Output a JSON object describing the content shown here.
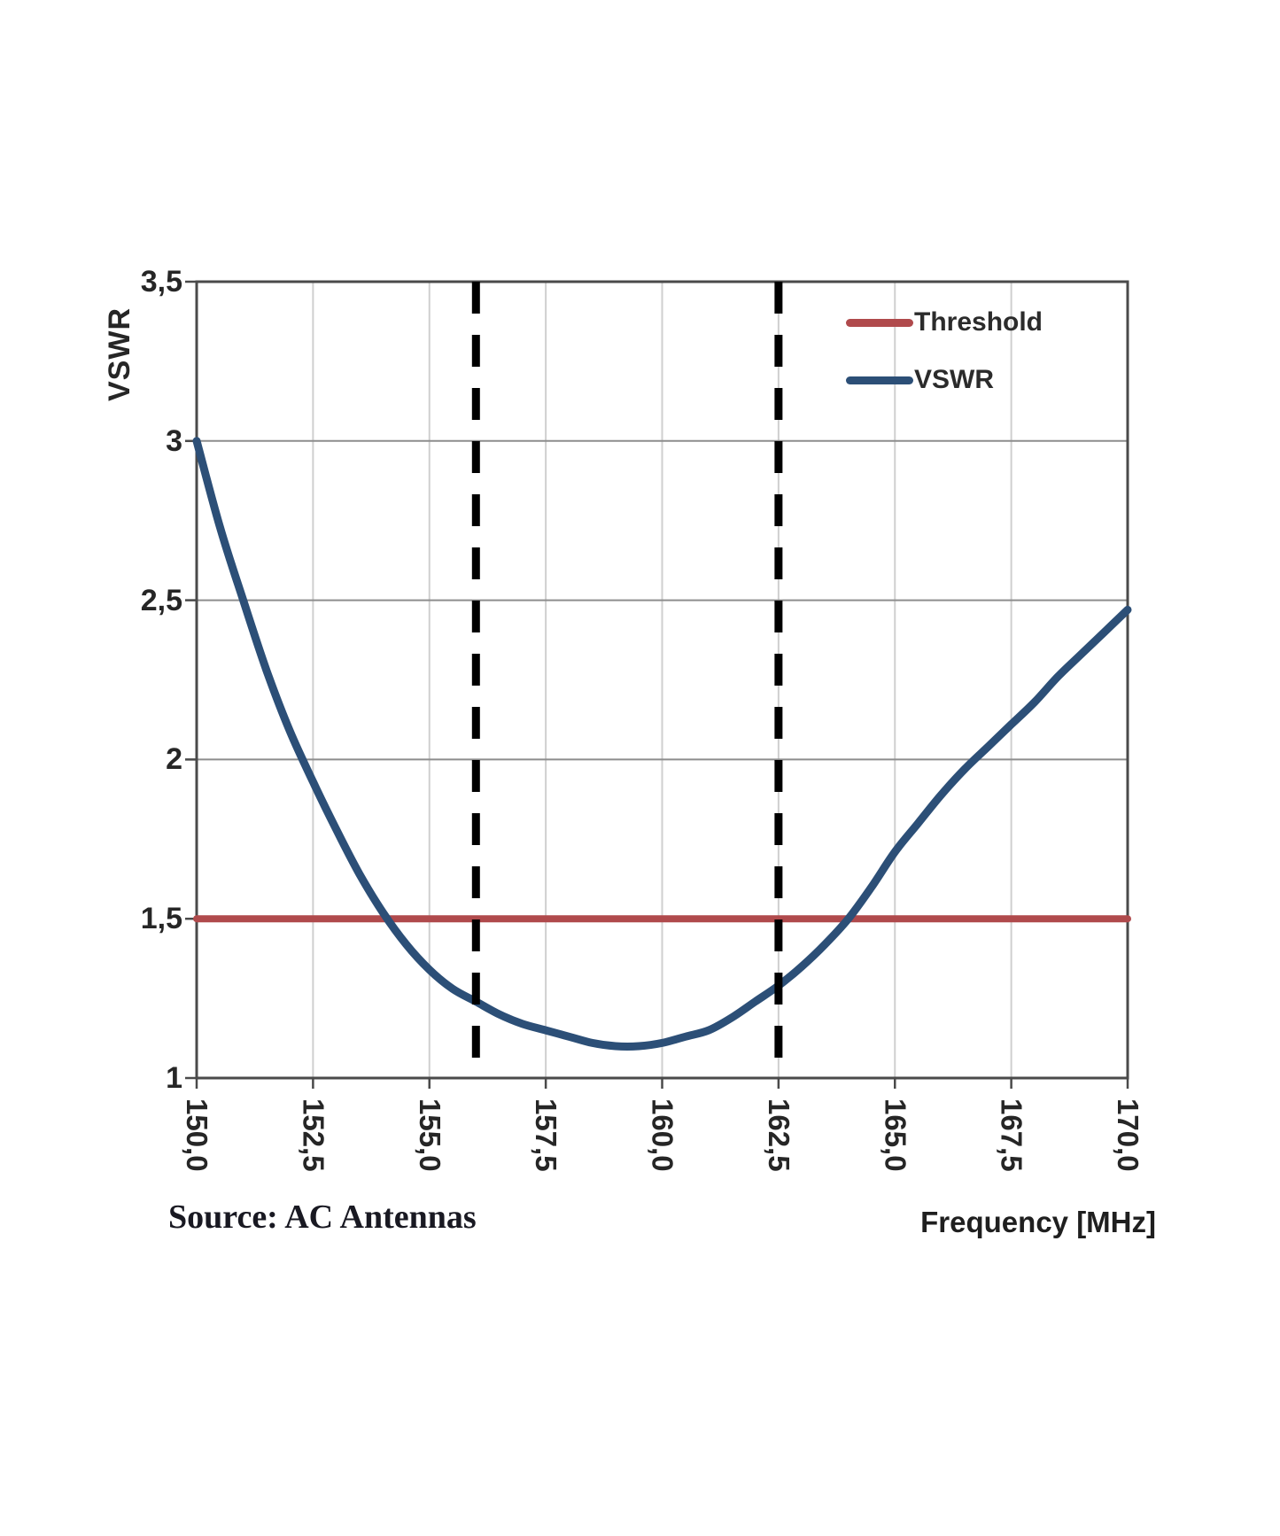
{
  "source_note": "Source: AC Antennas",
  "chart_data": {
    "type": "line",
    "title": "",
    "xlabel": "Frequency [MHz]",
    "ylabel": "VSWR",
    "xlim": [
      150,
      170
    ],
    "ylim": [
      1,
      3.5
    ],
    "grid": true,
    "x_ticks": [
      {
        "value": 150.0,
        "label": "150,0"
      },
      {
        "value": 152.5,
        "label": "152,5"
      },
      {
        "value": 155.0,
        "label": "155,0"
      },
      {
        "value": 157.5,
        "label": "157,5"
      },
      {
        "value": 160.0,
        "label": "160,0"
      },
      {
        "value": 162.5,
        "label": "162,5"
      },
      {
        "value": 165.0,
        "label": "165,0"
      },
      {
        "value": 167.5,
        "label": "167,5"
      },
      {
        "value": 170.0,
        "label": "170,0"
      }
    ],
    "y_ticks": [
      {
        "value": 1.0,
        "label": "1"
      },
      {
        "value": 1.5,
        "label": "1,5"
      },
      {
        "value": 2.0,
        "label": "2"
      },
      {
        "value": 2.5,
        "label": "2,5"
      },
      {
        "value": 3.0,
        "label": "3"
      },
      {
        "value": 3.5,
        "label": "3,5"
      }
    ],
    "legend": {
      "position": "top-right",
      "entries": [
        {
          "label": "Threshold",
          "color": "#B04A4C"
        },
        {
          "label": "VSWR",
          "color": "#2C4F77"
        }
      ]
    },
    "threshold": {
      "name": "Threshold",
      "value": 1.5,
      "color": "#B04A4C"
    },
    "series": [
      {
        "name": "VSWR",
        "color": "#2C4F77",
        "points": [
          [
            150.0,
            3.0
          ],
          [
            150.5,
            2.73
          ],
          [
            151.0,
            2.5
          ],
          [
            151.5,
            2.28
          ],
          [
            152.0,
            2.09
          ],
          [
            152.5,
            1.93
          ],
          [
            153.0,
            1.78
          ],
          [
            153.5,
            1.64
          ],
          [
            154.0,
            1.52
          ],
          [
            154.5,
            1.42
          ],
          [
            155.0,
            1.34
          ],
          [
            155.5,
            1.28
          ],
          [
            156.0,
            1.24
          ],
          [
            156.5,
            1.2
          ],
          [
            157.0,
            1.17
          ],
          [
            157.5,
            1.15
          ],
          [
            158.0,
            1.13
          ],
          [
            158.5,
            1.11
          ],
          [
            159.0,
            1.1
          ],
          [
            159.5,
            1.1
          ],
          [
            160.0,
            1.11
          ],
          [
            160.5,
            1.13
          ],
          [
            161.0,
            1.15
          ],
          [
            161.5,
            1.19
          ],
          [
            162.0,
            1.24
          ],
          [
            162.5,
            1.29
          ],
          [
            163.0,
            1.35
          ],
          [
            163.5,
            1.42
          ],
          [
            164.0,
            1.5
          ],
          [
            164.5,
            1.6
          ],
          [
            165.0,
            1.71
          ],
          [
            165.5,
            1.8
          ],
          [
            166.0,
            1.89
          ],
          [
            166.5,
            1.97
          ],
          [
            167.0,
            2.04
          ],
          [
            167.5,
            2.11
          ],
          [
            168.0,
            2.18
          ],
          [
            168.5,
            2.26
          ],
          [
            169.0,
            2.33
          ],
          [
            169.5,
            2.4
          ],
          [
            170.0,
            2.47
          ]
        ]
      }
    ],
    "band_markers": {
      "style": "dashed",
      "color": "#000000",
      "x_values": [
        156.0,
        162.5
      ]
    },
    "style_colors": {
      "axis": "#4a4a4a",
      "grid_horizontal": "#8d8d8d",
      "grid_vertical": "#cfcfcf",
      "tick_text": "#262626"
    }
  }
}
